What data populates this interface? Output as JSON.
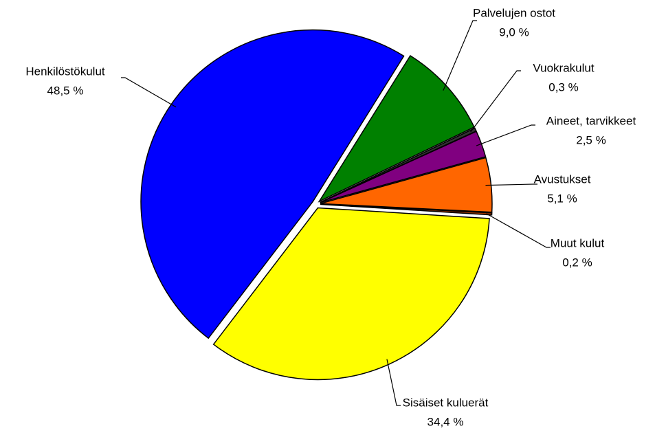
{
  "chart_data": {
    "type": "pie",
    "categories": [
      "Palvelujen ostot",
      "Vuokrakulut",
      "Aineet, tarvikkeet",
      "Avustukset",
      "Muut kulut",
      "Sisäiset kuluerät",
      "Henkilöstökulut"
    ],
    "values": [
      9.0,
      0.3,
      2.5,
      5.1,
      0.2,
      34.4,
      48.5
    ],
    "value_labels": [
      "9,0 %",
      "0,3 %",
      "2,5 %",
      "5,1 %",
      "0,2 %",
      "34,4 %",
      "48,5 %"
    ],
    "colors": [
      "#008000",
      "#333333",
      "#800080",
      "#ff6600",
      "#993300",
      "#ffff00",
      "#0000ff"
    ]
  }
}
